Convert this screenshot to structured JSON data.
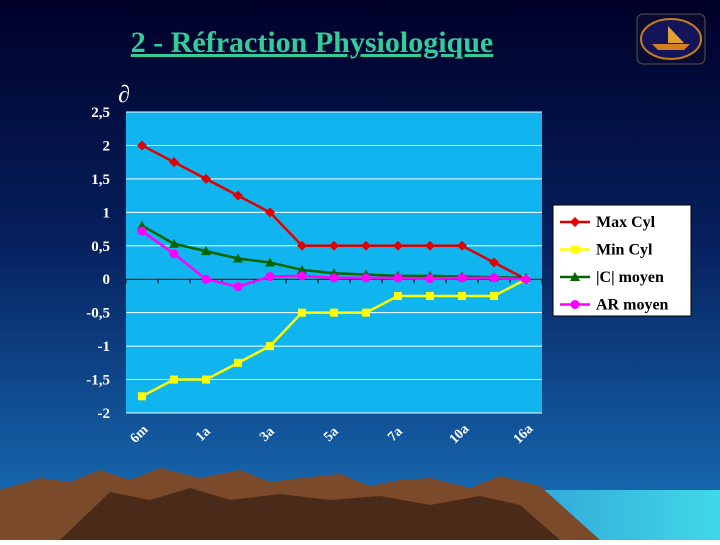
{
  "chart_data": {
    "type": "line",
    "title": "2 - Réfraction Physiologique",
    "y_label": "∂",
    "categories": [
      "6m",
      null,
      "1a",
      null,
      "3a",
      null,
      "5a",
      null,
      "7a",
      null,
      "10a",
      null,
      "16a"
    ],
    "ylim": [
      -2,
      2.5
    ],
    "yticks": [
      {
        "value": 2.5,
        "label": "2,5"
      },
      2,
      {
        "value": 1.5,
        "label": "1,5"
      },
      1,
      {
        "value": 0.5,
        "label": "0,5"
      },
      0,
      {
        "value": -0.5,
        "label": "-0,5"
      },
      -1,
      {
        "value": -1.5,
        "label": "-1,5"
      },
      -2
    ],
    "grid": true,
    "legend": "right",
    "series": [
      {
        "name": "Max Cyl",
        "color": "#e00000",
        "marker": "diamond",
        "values": [
          2,
          1.75,
          1.5,
          1.25,
          1,
          0.5,
          0.5,
          0.5,
          0.5,
          0.5,
          0.5,
          0.25,
          0
        ]
      },
      {
        "name": "Min Cyl",
        "color": "#ffff00",
        "marker": "square",
        "values": [
          -1.75,
          -1.5,
          -1.5,
          -1.25,
          -1,
          -0.5,
          -0.5,
          -0.5,
          -0.25,
          -0.25,
          -0.25,
          -0.25,
          0
        ]
      },
      {
        "name": "|C| moyen",
        "color": "#006600",
        "marker": "triangle",
        "values": [
          0.8,
          0.53,
          0.42,
          0.31,
          0.25,
          0.14,
          0.09,
          0.07,
          0.05,
          0.05,
          0.04,
          0.03,
          0.02
        ]
      },
      {
        "name": "AR moyen",
        "color": "#ff00ff",
        "marker": "circle",
        "values": [
          0.72,
          0.38,
          0,
          -0.11,
          0.04,
          0.05,
          0.02,
          0.02,
          0.02,
          0.01,
          0.02,
          0.02,
          0
        ]
      }
    ]
  }
}
